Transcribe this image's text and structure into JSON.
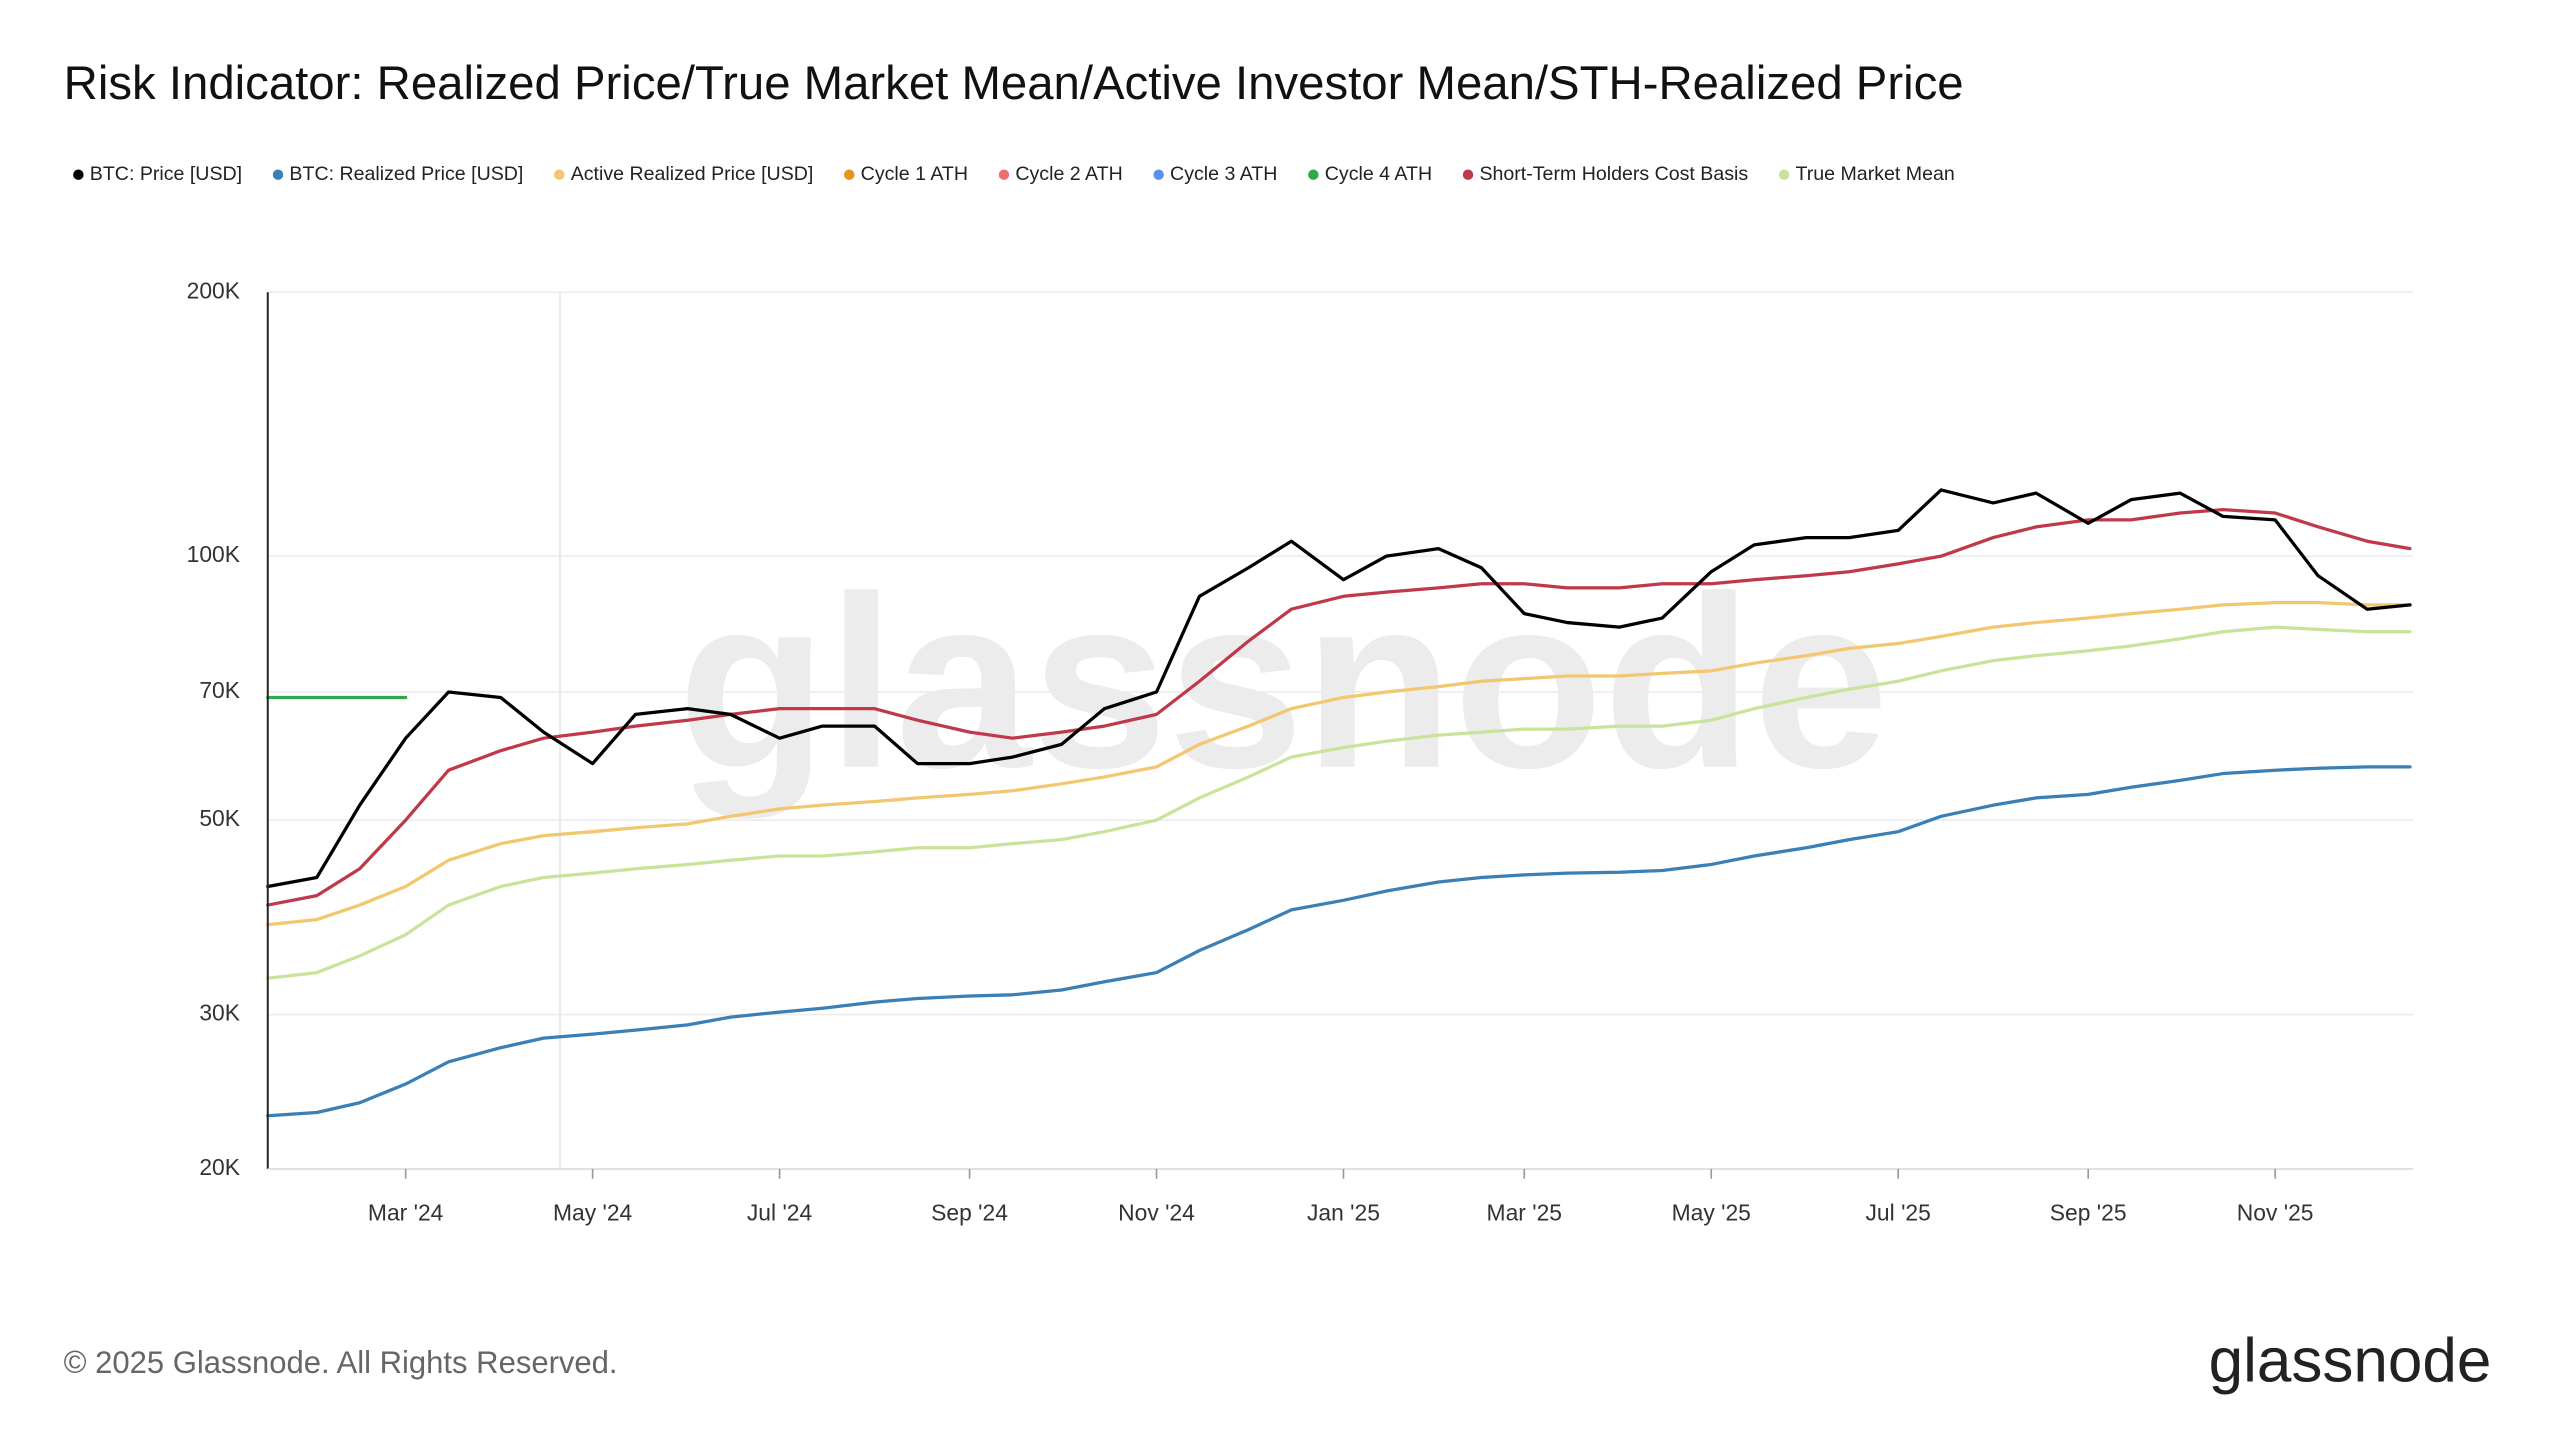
{
  "chart_data": {
    "type": "line",
    "title": "Risk Indicator: Realized Price/True Market Mean/Active Investor Mean/STH-Realized Price",
    "watermark": "glassnode",
    "footer": "© 2025 Glassnode. All Rights Reserved.",
    "logo": "glassnode",
    "log_scale": true,
    "grid": true,
    "legend": "top",
    "xlim": [
      "2024-01-16",
      "2025-12-16"
    ],
    "xticks": [
      {
        "value": "2024-03-01",
        "label": "Mar '24"
      },
      {
        "value": "2024-05-01",
        "label": "May '24"
      },
      {
        "value": "2024-07-01",
        "label": "Jul '24"
      },
      {
        "value": "2024-09-01",
        "label": "Sep '24"
      },
      {
        "value": "2024-11-01",
        "label": "Nov '24"
      },
      {
        "value": "2025-01-01",
        "label": "Jan '25"
      },
      {
        "value": "2025-03-01",
        "label": "Mar '25"
      },
      {
        "value": "2025-05-01",
        "label": "May '25"
      },
      {
        "value": "2025-07-01",
        "label": "Jul '25"
      },
      {
        "value": "2025-09-01",
        "label": "Sep '25"
      },
      {
        "value": "2025-11-01",
        "label": "Nov '25"
      }
    ],
    "ylim": [
      20000,
      200000
    ],
    "yticks": [
      {
        "value": 20000,
        "label": "20K"
      },
      {
        "value": 30000,
        "label": "30K"
      },
      {
        "value": 50000,
        "label": "50K"
      },
      {
        "value": 70000,
        "label": "70K"
      },
      {
        "value": 100000,
        "label": "100K"
      },
      {
        "value": 200000,
        "label": "200K"
      }
    ],
    "x": [
      "2024-01-16",
      "2024-02-01",
      "2024-02-15",
      "2024-03-01",
      "2024-03-15",
      "2024-04-01",
      "2024-04-15",
      "2024-05-01",
      "2024-05-15",
      "2024-06-01",
      "2024-06-15",
      "2024-07-01",
      "2024-07-15",
      "2024-08-01",
      "2024-08-15",
      "2024-09-01",
      "2024-09-15",
      "2024-10-01",
      "2024-10-15",
      "2024-11-01",
      "2024-11-15",
      "2024-12-01",
      "2024-12-15",
      "2025-01-01",
      "2025-01-15",
      "2025-02-01",
      "2025-02-15",
      "2025-03-01",
      "2025-03-15",
      "2025-04-01",
      "2025-04-15",
      "2025-05-01",
      "2025-05-15",
      "2025-06-01",
      "2025-06-15",
      "2025-07-01",
      "2025-07-15",
      "2025-08-01",
      "2025-08-15",
      "2025-09-01",
      "2025-09-15",
      "2025-10-01",
      "2025-10-15",
      "2025-11-01",
      "2025-11-15",
      "2025-12-01",
      "2025-12-15"
    ],
    "series": [
      {
        "name": "BTC: Price [USD]",
        "color": "#000000",
        "width": 2,
        "values": [
          42000,
          43000,
          52000,
          62000,
          70000,
          69000,
          63000,
          58000,
          66000,
          67000,
          66000,
          62000,
          64000,
          64000,
          58000,
          58000,
          59000,
          61000,
          67000,
          70000,
          90000,
          97000,
          104000,
          94000,
          100000,
          102000,
          97000,
          86000,
          84000,
          83000,
          85000,
          96000,
          103000,
          105000,
          105000,
          107000,
          119000,
          115000,
          118000,
          109000,
          116000,
          118000,
          111000,
          110000,
          95000,
          87000,
          88000
        ]
      },
      {
        "name": "BTC: Realized Price [USD]",
        "color": "#3a7fb5",
        "width": 2,
        "values": [
          23000,
          23200,
          23800,
          25000,
          26500,
          27500,
          28200,
          28500,
          28800,
          29200,
          29800,
          30200,
          30500,
          31000,
          31300,
          31500,
          31600,
          32000,
          32700,
          33500,
          35500,
          37500,
          39500,
          40500,
          41500,
          42500,
          43000,
          43300,
          43500,
          43600,
          43800,
          44500,
          45500,
          46500,
          47500,
          48500,
          50500,
          52000,
          53000,
          53500,
          54500,
          55500,
          56500,
          57000,
          57300,
          57500,
          57500
        ]
      },
      {
        "name": "Active Realized Price [USD]",
        "color": "#f2c76f",
        "width": 2,
        "values": [
          38000,
          38500,
          40000,
          42000,
          45000,
          47000,
          48000,
          48500,
          49000,
          49500,
          50500,
          51500,
          52000,
          52500,
          53000,
          53500,
          54000,
          55000,
          56000,
          57500,
          61000,
          64000,
          67000,
          69000,
          70000,
          71000,
          72000,
          72500,
          73000,
          73000,
          73500,
          74000,
          75500,
          77000,
          78500,
          79500,
          81000,
          83000,
          84000,
          85000,
          86000,
          87000,
          88000,
          88500,
          88500,
          88000,
          88000
        ]
      },
      {
        "name": "Cycle 1 ATH",
        "color": "#e8941a",
        "width": 2,
        "values": [
          null,
          null,
          null,
          null,
          null,
          null,
          null,
          null,
          null,
          null,
          null,
          null,
          null,
          null,
          null,
          null,
          null,
          null,
          null,
          null,
          null,
          null,
          null,
          null,
          null,
          null,
          null,
          null,
          null,
          null,
          null,
          null,
          null,
          null,
          null,
          null,
          null,
          null,
          null,
          null,
          null,
          null,
          null,
          null,
          null,
          null,
          null
        ]
      },
      {
        "name": "Cycle 2 ATH",
        "color": "#f07070",
        "width": 2,
        "values": [
          null,
          null,
          null,
          null,
          null,
          null,
          null,
          null,
          null,
          null,
          null,
          null,
          null,
          null,
          null,
          null,
          null,
          null,
          null,
          null,
          null,
          null,
          null,
          null,
          null,
          null,
          null,
          null,
          null,
          null,
          null,
          null,
          null,
          null,
          null,
          null,
          null,
          null,
          null,
          null,
          null,
          null,
          null,
          null,
          null,
          null,
          null
        ]
      },
      {
        "name": "Cycle 3 ATH",
        "color": "#5b8ff0",
        "width": 2,
        "values": [
          null,
          null,
          null,
          null,
          null,
          null,
          null,
          null,
          null,
          null,
          null,
          null,
          null,
          null,
          null,
          null,
          null,
          null,
          null,
          null,
          null,
          null,
          null,
          null,
          null,
          null,
          null,
          null,
          null,
          null,
          null,
          null,
          null,
          null,
          null,
          null,
          null,
          null,
          null,
          null,
          null,
          null,
          null,
          null,
          null,
          null,
          null
        ]
      },
      {
        "name": "Cycle 4 ATH",
        "color": "#2ea84a",
        "width": 2,
        "values": [
          69000,
          69000,
          69000,
          69000,
          null,
          null,
          null,
          null,
          null,
          null,
          null,
          null,
          null,
          null,
          null,
          null,
          null,
          null,
          null,
          null,
          null,
          null,
          null,
          null,
          null,
          null,
          null,
          null,
          null,
          null,
          null,
          null,
          null,
          null,
          null,
          null,
          null,
          null,
          null,
          null,
          null,
          null,
          null,
          null,
          null,
          null,
          null
        ]
      },
      {
        "name": "Short-Term Holders Cost Basis",
        "color": "#c0394b",
        "width": 2,
        "values": [
          40000,
          41000,
          44000,
          50000,
          57000,
          60000,
          62000,
          63000,
          64000,
          65000,
          66000,
          67000,
          67000,
          67000,
          65000,
          63000,
          62000,
          63000,
          64000,
          66000,
          72000,
          80000,
          87000,
          90000,
          91000,
          92000,
          93000,
          93000,
          92000,
          92000,
          93000,
          93000,
          94000,
          95000,
          96000,
          98000,
          100000,
          105000,
          108000,
          110000,
          110000,
          112000,
          113000,
          112000,
          108000,
          104000,
          102000
        ]
      },
      {
        "name": "True Market Mean",
        "color": "#c9e39b",
        "width": 2,
        "values": [
          33000,
          33500,
          35000,
          37000,
          40000,
          42000,
          43000,
          43500,
          44000,
          44500,
          45000,
          45500,
          45500,
          46000,
          46500,
          46500,
          47000,
          47500,
          48500,
          50000,
          53000,
          56000,
          59000,
          60500,
          61500,
          62500,
          63000,
          63500,
          63500,
          64000,
          64000,
          65000,
          67000,
          69000,
          70500,
          72000,
          74000,
          76000,
          77000,
          78000,
          79000,
          80500,
          82000,
          83000,
          82500,
          82000,
          82000
        ]
      }
    ]
  }
}
